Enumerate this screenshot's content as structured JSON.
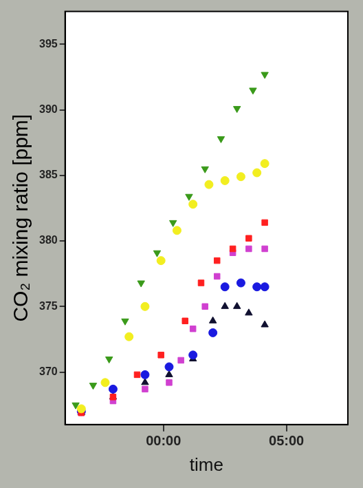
{
  "chart_data": {
    "type": "scatter",
    "x_label": "time",
    "y_label": "CO₂ mixing ratio [ppm]",
    "xlim": [
      -4,
      7.5
    ],
    "ylim": [
      366,
      397.5
    ],
    "xticks": [
      {
        "value": 0,
        "label": "00:00"
      },
      {
        "value": 5,
        "label": "05:00"
      }
    ],
    "yticks": [
      370,
      375,
      380,
      385,
      390,
      395
    ],
    "grid": false,
    "series": [
      {
        "color": "#3a9a1a",
        "marker": "triangle-down",
        "x": [
          -3.57,
          -2.86,
          -2.21,
          -1.56,
          -0.91,
          -0.26,
          0.39,
          1.04,
          1.69,
          2.34,
          2.99,
          3.64,
          4.12
        ],
        "values": [
          367.5,
          369.0,
          371.0,
          373.9,
          376.8,
          379.1,
          381.4,
          383.4,
          385.5,
          387.8,
          390.1,
          391.5,
          392.7
        ]
      },
      {
        "color": "#f2ee20",
        "marker": "circle",
        "x": [
          -3.34,
          -2.37,
          -1.4,
          -0.75,
          -0.1,
          0.55,
          1.2,
          1.85,
          2.5,
          3.15,
          3.8,
          4.12
        ],
        "values": [
          367.2,
          369.2,
          372.7,
          375.0,
          378.5,
          380.8,
          382.8,
          384.3,
          384.6,
          384.9,
          385.2,
          385.9
        ]
      },
      {
        "color": "#ff2020",
        "marker": "square",
        "x": [
          -3.34,
          -2.05,
          -1.07,
          -0.1,
          0.88,
          1.53,
          2.18,
          2.82,
          3.47,
          4.12
        ],
        "values": [
          366.9,
          368.1,
          369.8,
          371.3,
          373.9,
          376.8,
          378.5,
          379.4,
          380.2,
          381.4
        ]
      },
      {
        "color": "#d040d0",
        "marker": "square",
        "x": [
          -3.34,
          -2.05,
          -0.75,
          0.23,
          0.71,
          1.2,
          1.69,
          2.18,
          2.82,
          3.47,
          4.12
        ],
        "values": [
          366.9,
          367.8,
          368.7,
          369.2,
          370.9,
          373.3,
          375.0,
          377.3,
          379.1,
          379.4,
          379.4
        ]
      },
      {
        "color": "#1a1ae0",
        "marker": "circle",
        "x": [
          -3.34,
          -2.05,
          -0.75,
          0.23,
          1.2,
          2.01,
          2.5,
          3.15,
          3.8,
          4.12
        ],
        "values": [
          367.0,
          368.7,
          369.8,
          370.4,
          371.3,
          373.0,
          376.5,
          376.8,
          376.5,
          376.5
        ]
      },
      {
        "color": "#101030",
        "marker": "triangle",
        "x": [
          -3.34,
          -2.05,
          -0.75,
          0.23,
          1.2,
          2.01,
          2.5,
          2.99,
          3.47,
          4.12
        ],
        "values": [
          366.9,
          368.1,
          369.2,
          369.8,
          371.0,
          373.9,
          375.0,
          375.0,
          374.5,
          373.6
        ]
      }
    ]
  }
}
